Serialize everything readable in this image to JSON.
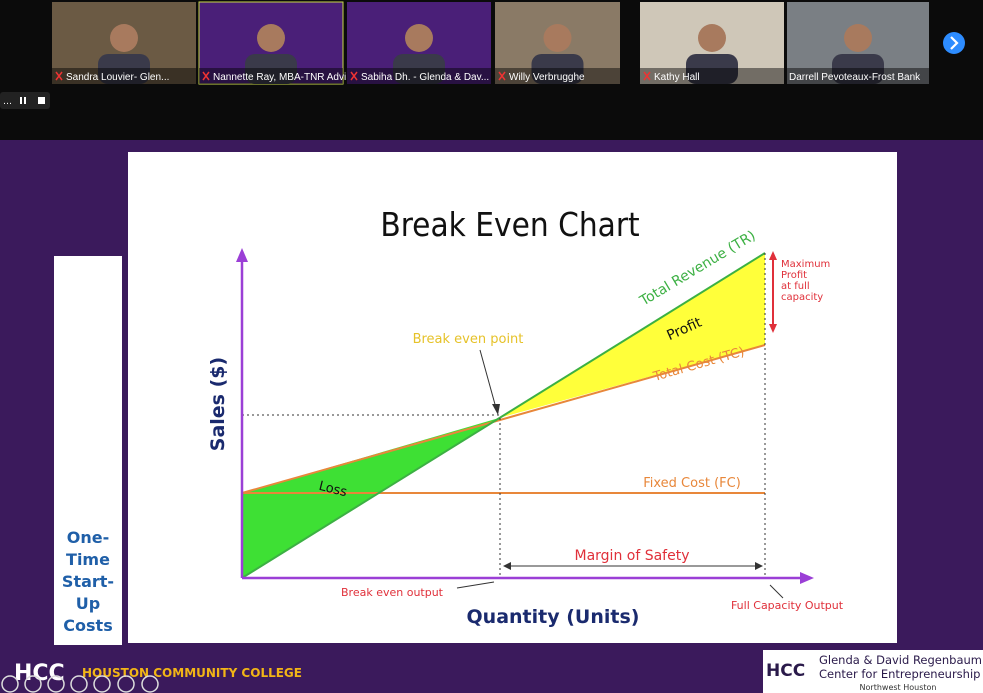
{
  "participants": [
    {
      "name": "Sandra Louvier- Glen..."
    },
    {
      "name": "Nannette Ray, MBA-TNR Advi..."
    },
    {
      "name": "Sabiha Dh. - Glenda & Dav..."
    },
    {
      "name": "Willy Verbrugghe"
    },
    {
      "name": "Kathy Hall"
    },
    {
      "name": "Darrell Pevoteaux-Frost Bank"
    }
  ],
  "slide": {
    "title": "Break Even Chart",
    "y_axis_label": "Sales ($)",
    "x_axis_label": "Quantity (Units)",
    "labels": {
      "total_revenue": "Total Revenue (TR)",
      "total_cost": "Total Cost (TC)",
      "fixed_cost": "Fixed Cost (FC)",
      "profit": "Profit",
      "loss": "Loss",
      "break_even_point": "Break even point",
      "max_profit": [
        "Maximum",
        "Profit",
        "at full",
        "capacity"
      ],
      "margin_of_safety": "Margin of Safety",
      "break_even_output": "Break even output",
      "full_capacity_output": "Full Capacity Output"
    },
    "sidebar": [
      "One-",
      "Time",
      "Start-",
      "Up",
      "Costs"
    ]
  },
  "footer": {
    "college": "HOUSTON COMMUNITY COLLEGE",
    "logo": "HCC",
    "center": [
      "Glenda & David Regenbaum",
      "Center for Entrepreneurship"
    ],
    "campus": "Northwest Houston"
  }
}
